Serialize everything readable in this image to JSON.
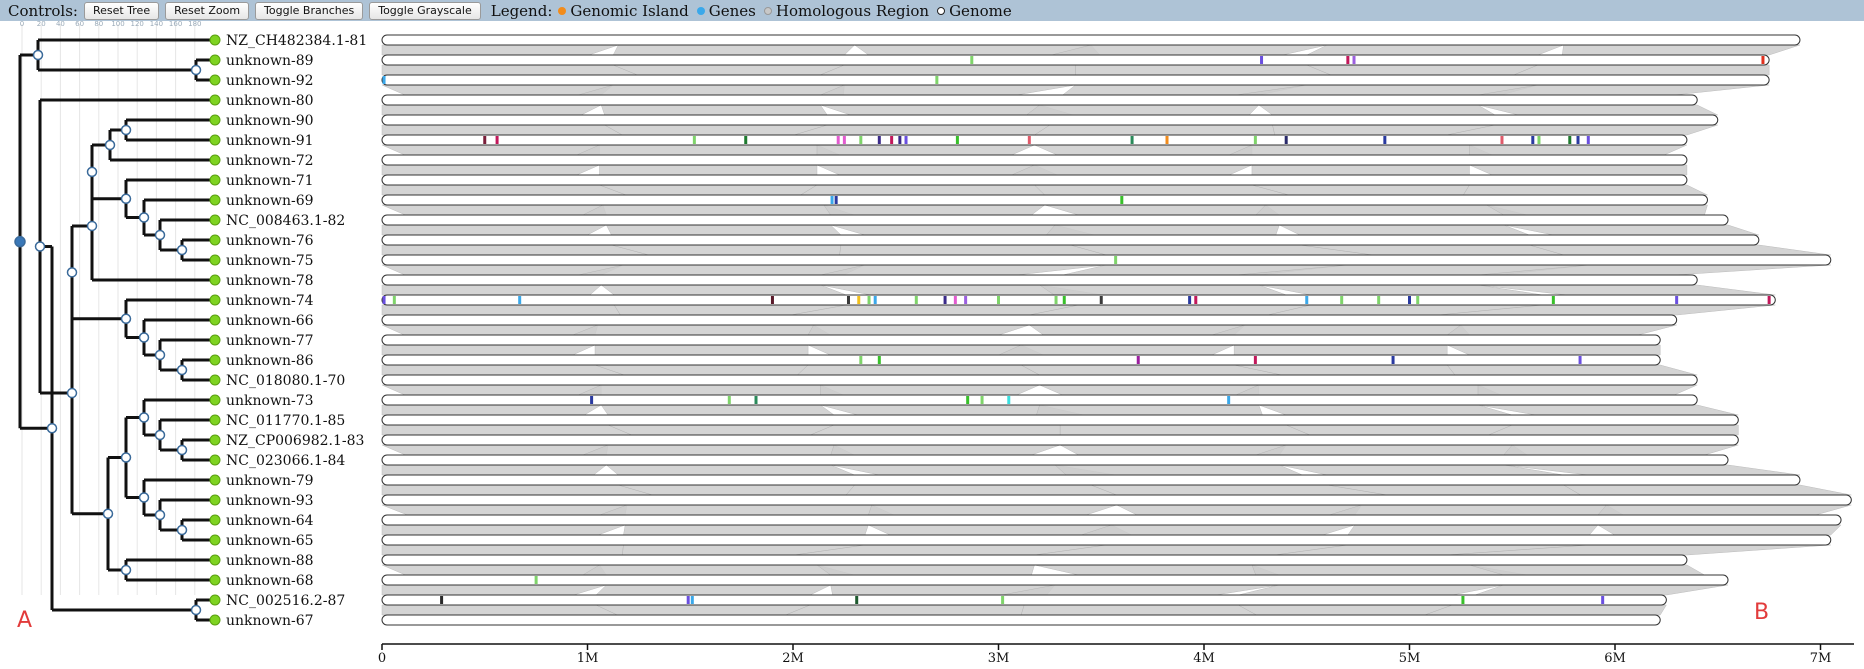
{
  "controls": {
    "label": "Controls:",
    "reset_tree": "Reset Tree",
    "reset_zoom": "Reset Zoom",
    "toggle_branches": "Toggle Branches",
    "toggle_grayscale": "Toggle Grayscale"
  },
  "legend": {
    "label": "Legend:",
    "items": [
      {
        "label": "Genomic Island",
        "color": "#f28c1c"
      },
      {
        "label": "Genes",
        "color": "#3aa8ea"
      },
      {
        "label": "Homologous Region",
        "color": "#c8c8c8"
      },
      {
        "label": "Genome",
        "color": "#ffffff"
      }
    ]
  },
  "tree_ruler": [
    "0",
    "20",
    "40",
    "60",
    "80",
    "100",
    "120",
    "140",
    "160",
    "180"
  ],
  "genomes": [
    {
      "name": "NZ_CH482384.1-81",
      "length": 6.9
    },
    {
      "name": "unknown-89",
      "length": 6.75
    },
    {
      "name": "unknown-92",
      "length": 6.75
    },
    {
      "name": "unknown-80",
      "length": 6.4
    },
    {
      "name": "unknown-90",
      "length": 6.5
    },
    {
      "name": "unknown-91",
      "length": 6.35
    },
    {
      "name": "unknown-72",
      "length": 6.35
    },
    {
      "name": "unknown-71",
      "length": 6.35
    },
    {
      "name": "unknown-69",
      "length": 6.45
    },
    {
      "name": "NC_008463.1-82",
      "length": 6.55
    },
    {
      "name": "unknown-76",
      "length": 6.7
    },
    {
      "name": "unknown-75",
      "length": 7.05
    },
    {
      "name": "unknown-78",
      "length": 6.4
    },
    {
      "name": "unknown-74",
      "length": 6.78
    },
    {
      "name": "unknown-66",
      "length": 6.3
    },
    {
      "name": "unknown-77",
      "length": 6.22
    },
    {
      "name": "unknown-86",
      "length": 6.22
    },
    {
      "name": "NC_018080.1-70",
      "length": 6.4
    },
    {
      "name": "unknown-73",
      "length": 6.4
    },
    {
      "name": "NC_011770.1-85",
      "length": 6.6
    },
    {
      "name": "NZ_CP006982.1-83",
      "length": 6.6
    },
    {
      "name": "NC_023066.1-84",
      "length": 6.55
    },
    {
      "name": "unknown-79",
      "length": 6.9
    },
    {
      "name": "unknown-93",
      "length": 7.15
    },
    {
      "name": "unknown-64",
      "length": 7.1
    },
    {
      "name": "unknown-65",
      "length": 7.05
    },
    {
      "name": "unknown-88",
      "length": 6.35
    },
    {
      "name": "unknown-68",
      "length": 6.55
    },
    {
      "name": "NC_002516.2-87",
      "length": 6.25
    },
    {
      "name": "unknown-67",
      "length": 6.22
    }
  ],
  "genome_axis": {
    "ticks": [
      {
        "value": 0,
        "label": "0"
      },
      {
        "value": 1,
        "label": "1M"
      },
      {
        "value": 2,
        "label": "2M"
      },
      {
        "value": 3,
        "label": "3M"
      },
      {
        "value": 4,
        "label": "4M"
      },
      {
        "value": 5,
        "label": "5M"
      },
      {
        "value": 6,
        "label": "6M"
      },
      {
        "value": 7,
        "label": "7M"
      }
    ]
  },
  "markers": [
    {
      "row": 1,
      "pos": 2.87,
      "color": "#7fd46a"
    },
    {
      "row": 1,
      "pos": 4.28,
      "color": "#6a4fe0"
    },
    {
      "row": 1,
      "pos": 4.7,
      "color": "#c2185b"
    },
    {
      "row": 1,
      "pos": 4.73,
      "color": "#9c5fe0"
    },
    {
      "row": 1,
      "pos": 6.72,
      "color": "#e0301e"
    },
    {
      "row": 2,
      "pos": 0.01,
      "color": "#3aa8ea"
    },
    {
      "row": 2,
      "pos": 2.7,
      "color": "#7fd46a"
    },
    {
      "row": 5,
      "pos": 0.5,
      "color": "#7a1f3a"
    },
    {
      "row": 5,
      "pos": 0.56,
      "color": "#c2185b"
    },
    {
      "row": 5,
      "pos": 1.52,
      "color": "#7fd46a"
    },
    {
      "row": 5,
      "pos": 1.77,
      "color": "#1e7a2e"
    },
    {
      "row": 5,
      "pos": 2.22,
      "color": "#e35ad0"
    },
    {
      "row": 5,
      "pos": 2.25,
      "color": "#e35ad0"
    },
    {
      "row": 5,
      "pos": 2.33,
      "color": "#7fd46a"
    },
    {
      "row": 5,
      "pos": 2.42,
      "color": "#3b2a8a"
    },
    {
      "row": 5,
      "pos": 2.48,
      "color": "#c2185b"
    },
    {
      "row": 5,
      "pos": 2.52,
      "color": "#3b2a8a"
    },
    {
      "row": 5,
      "pos": 2.55,
      "color": "#6a4fe0"
    },
    {
      "row": 5,
      "pos": 2.8,
      "color": "#38c02a"
    },
    {
      "row": 5,
      "pos": 3.15,
      "color": "#e05a6a"
    },
    {
      "row": 5,
      "pos": 3.65,
      "color": "#2a8a5a"
    },
    {
      "row": 5,
      "pos": 3.82,
      "color": "#f28c1c"
    },
    {
      "row": 5,
      "pos": 4.25,
      "color": "#7fd46a"
    },
    {
      "row": 5,
      "pos": 4.4,
      "color": "#2a2a6a"
    },
    {
      "row": 5,
      "pos": 4.88,
      "color": "#2a3aa0"
    },
    {
      "row": 5,
      "pos": 5.45,
      "color": "#e05a6a"
    },
    {
      "row": 5,
      "pos": 5.6,
      "color": "#2a3aa0"
    },
    {
      "row": 5,
      "pos": 5.63,
      "color": "#7fd46a"
    },
    {
      "row": 5,
      "pos": 5.78,
      "color": "#1e7a2e"
    },
    {
      "row": 5,
      "pos": 5.82,
      "color": "#2a3aa0"
    },
    {
      "row": 5,
      "pos": 5.87,
      "color": "#6a4fe0"
    },
    {
      "row": 8,
      "pos": 2.19,
      "color": "#3aa8ea"
    },
    {
      "row": 8,
      "pos": 2.21,
      "color": "#2a3aa0"
    },
    {
      "row": 8,
      "pos": 3.6,
      "color": "#38c02a"
    },
    {
      "row": 11,
      "pos": 3.57,
      "color": "#7fd46a"
    },
    {
      "row": 13,
      "pos": 0.01,
      "color": "#6a4fe0"
    },
    {
      "row": 13,
      "pos": 0.06,
      "color": "#7fd46a"
    },
    {
      "row": 13,
      "pos": 0.67,
      "color": "#3aa8ea"
    },
    {
      "row": 13,
      "pos": 1.9,
      "color": "#5a1a2a"
    },
    {
      "row": 13,
      "pos": 2.27,
      "color": "#3a3a3a"
    },
    {
      "row": 13,
      "pos": 2.32,
      "color": "#f2c01c"
    },
    {
      "row": 13,
      "pos": 2.37,
      "color": "#7fd46a"
    },
    {
      "row": 13,
      "pos": 2.4,
      "color": "#3aa8ea"
    },
    {
      "row": 13,
      "pos": 2.6,
      "color": "#7fd46a"
    },
    {
      "row": 13,
      "pos": 2.74,
      "color": "#3b2a8a"
    },
    {
      "row": 13,
      "pos": 2.79,
      "color": "#e35ad0"
    },
    {
      "row": 13,
      "pos": 2.84,
      "color": "#9c5fe0"
    },
    {
      "row": 13,
      "pos": 3.0,
      "color": "#7fd46a"
    },
    {
      "row": 13,
      "pos": 3.28,
      "color": "#7fd46a"
    },
    {
      "row": 13,
      "pos": 3.32,
      "color": "#38c02a"
    },
    {
      "row": 13,
      "pos": 3.5,
      "color": "#3a3a3a"
    },
    {
      "row": 13,
      "pos": 3.93,
      "color": "#2a3aa0"
    },
    {
      "row": 13,
      "pos": 3.96,
      "color": "#c2185b"
    },
    {
      "row": 13,
      "pos": 4.5,
      "color": "#3aa8ea"
    },
    {
      "row": 13,
      "pos": 4.67,
      "color": "#7fd46a"
    },
    {
      "row": 13,
      "pos": 4.85,
      "color": "#7fd46a"
    },
    {
      "row": 13,
      "pos": 5.0,
      "color": "#2a3aa0"
    },
    {
      "row": 13,
      "pos": 5.04,
      "color": "#7fd46a"
    },
    {
      "row": 13,
      "pos": 5.7,
      "color": "#38c02a"
    },
    {
      "row": 13,
      "pos": 6.3,
      "color": "#6a4fe0"
    },
    {
      "row": 13,
      "pos": 6.75,
      "color": "#c2185b"
    },
    {
      "row": 16,
      "pos": 2.33,
      "color": "#7fd46a"
    },
    {
      "row": 16,
      "pos": 2.42,
      "color": "#38c02a"
    },
    {
      "row": 16,
      "pos": 3.68,
      "color": "#9c1fa0"
    },
    {
      "row": 16,
      "pos": 4.25,
      "color": "#c2185b"
    },
    {
      "row": 16,
      "pos": 4.92,
      "color": "#2a3aa0"
    },
    {
      "row": 16,
      "pos": 5.83,
      "color": "#6a4fe0"
    },
    {
      "row": 18,
      "pos": 1.02,
      "color": "#2a3aa0"
    },
    {
      "row": 18,
      "pos": 1.69,
      "color": "#7fd46a"
    },
    {
      "row": 18,
      "pos": 1.82,
      "color": "#2a8a5a"
    },
    {
      "row": 18,
      "pos": 2.85,
      "color": "#38c02a"
    },
    {
      "row": 18,
      "pos": 2.92,
      "color": "#7fd46a"
    },
    {
      "row": 18,
      "pos": 3.05,
      "color": "#3ae0e0"
    },
    {
      "row": 18,
      "pos": 4.12,
      "color": "#3aa8ea"
    },
    {
      "row": 27,
      "pos": 0.75,
      "color": "#7fd46a"
    },
    {
      "row": 28,
      "pos": 0.29,
      "color": "#2a2a2a"
    },
    {
      "row": 28,
      "pos": 1.49,
      "color": "#6a4fe0"
    },
    {
      "row": 28,
      "pos": 1.51,
      "color": "#3aa8ea"
    },
    {
      "row": 28,
      "pos": 2.31,
      "color": "#1e5a2e"
    },
    {
      "row": 28,
      "pos": 3.02,
      "color": "#7fd46a"
    },
    {
      "row": 28,
      "pos": 5.26,
      "color": "#38c02a"
    },
    {
      "row": 28,
      "pos": 5.94,
      "color": "#6a4fe0"
    }
  ],
  "panel_labels": {
    "a": "A",
    "b": "B"
  }
}
